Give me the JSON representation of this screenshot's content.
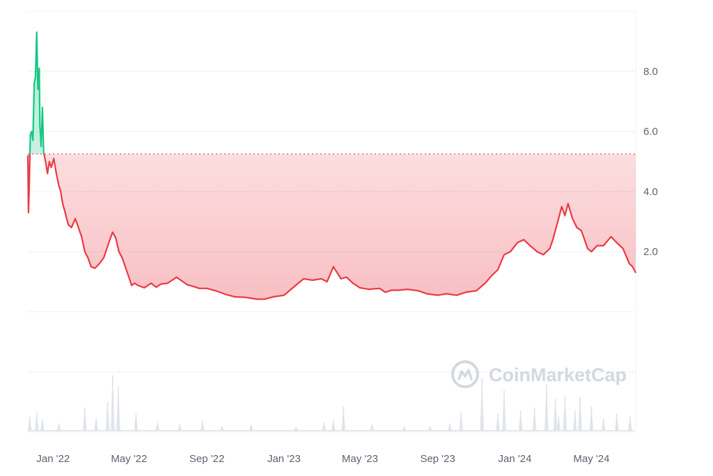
{
  "chart_data": {
    "type": "area",
    "baseline": 5.25,
    "ylim": [
      -4.0,
      10.0
    ],
    "y_ticks": [
      "8.0",
      "6.0",
      "4.0",
      "2.0"
    ],
    "y_tick_values": [
      8,
      6,
      4,
      2
    ],
    "x_ticks": [
      "Jan '22",
      "May '22",
      "Sep '22",
      "Jan '23",
      "May '23",
      "Sep '23",
      "Jan '24",
      "May '24"
    ],
    "x_tick_dates": [
      "2022-01-01",
      "2022-05-01",
      "2022-09-01",
      "2023-01-01",
      "2023-05-01",
      "2023-09-01",
      "2024-01-01",
      "2024-05-01"
    ],
    "x_range": [
      "2021-11-22",
      "2024-07-10"
    ],
    "series": [
      {
        "values_for": "price",
        "x": [
          "2021-11-22",
          "2021-11-23",
          "2021-11-24",
          "2021-11-26",
          "2021-11-28",
          "2021-11-30",
          "2021-12-02",
          "2021-12-04",
          "2021-12-06",
          "2021-12-07",
          "2021-12-08",
          "2021-12-10",
          "2021-12-11",
          "2021-12-13",
          "2021-12-15",
          "2021-12-17",
          "2021-12-20",
          "2021-12-23",
          "2021-12-26",
          "2021-12-29",
          "2022-01-02",
          "2022-01-06",
          "2022-01-10",
          "2022-01-13",
          "2022-01-16",
          "2022-01-20",
          "2022-01-25",
          "2022-01-30",
          "2022-02-05",
          "2022-02-10",
          "2022-02-15",
          "2022-02-20",
          "2022-02-25",
          "2022-03-02",
          "2022-03-08",
          "2022-03-15",
          "2022-03-22",
          "2022-03-30",
          "2022-04-05",
          "2022-04-10",
          "2022-04-15",
          "2022-04-20",
          "2022-04-25",
          "2022-04-30",
          "2022-05-05",
          "2022-05-10",
          "2022-05-15",
          "2022-05-25",
          "2022-06-05",
          "2022-06-13",
          "2022-06-20",
          "2022-07-01",
          "2022-07-15",
          "2022-08-01",
          "2022-08-10",
          "2022-08-20",
          "2022-09-01",
          "2022-09-15",
          "2022-10-01",
          "2022-10-15",
          "2022-11-01",
          "2022-11-10",
          "2022-11-20",
          "2022-12-01",
          "2022-12-15",
          "2023-01-01",
          "2023-01-15",
          "2023-02-01",
          "2023-02-15",
          "2023-03-01",
          "2023-03-10",
          "2023-03-20",
          "2023-04-01",
          "2023-04-10",
          "2023-04-20",
          "2023-05-01",
          "2023-05-15",
          "2023-06-01",
          "2023-06-10",
          "2023-06-20",
          "2023-07-01",
          "2023-07-15",
          "2023-08-01",
          "2023-08-15",
          "2023-09-01",
          "2023-09-15",
          "2023-10-01",
          "2023-10-15",
          "2023-11-01",
          "2023-11-15",
          "2023-11-25",
          "2023-12-05",
          "2023-12-15",
          "2023-12-25",
          "2024-01-05",
          "2024-01-15",
          "2024-01-25",
          "2024-02-05",
          "2024-02-15",
          "2024-02-25",
          "2024-03-01",
          "2024-03-10",
          "2024-03-15",
          "2024-03-20",
          "2024-03-25",
          "2024-04-01",
          "2024-04-08",
          "2024-04-15",
          "2024-04-25",
          "2024-05-01",
          "2024-05-10",
          "2024-05-20",
          "2024-06-01",
          "2024-06-10",
          "2024-06-20",
          "2024-06-30",
          "2024-07-05",
          "2024-07-10"
        ],
        "y": [
          5.2,
          3.3,
          4.0,
          5.9,
          6.0,
          5.7,
          7.6,
          7.8,
          9.3,
          8.3,
          7.4,
          8.1,
          6.2,
          5.5,
          6.8,
          5.3,
          5.0,
          4.6,
          5.0,
          4.8,
          5.1,
          4.6,
          4.2,
          4.0,
          3.6,
          3.3,
          2.9,
          2.8,
          3.1,
          2.8,
          2.5,
          2.0,
          1.8,
          1.5,
          1.45,
          1.6,
          1.8,
          2.3,
          2.65,
          2.45,
          2.0,
          1.8,
          1.5,
          1.2,
          0.88,
          0.95,
          0.88,
          0.8,
          0.95,
          0.82,
          0.92,
          0.95,
          1.15,
          0.9,
          0.85,
          0.78,
          0.78,
          0.7,
          0.58,
          0.5,
          0.48,
          0.45,
          0.42,
          0.42,
          0.5,
          0.55,
          0.8,
          1.1,
          1.05,
          1.1,
          1.0,
          1.5,
          1.1,
          1.15,
          0.95,
          0.8,
          0.75,
          0.78,
          0.65,
          0.72,
          0.72,
          0.75,
          0.7,
          0.6,
          0.55,
          0.6,
          0.55,
          0.65,
          0.7,
          0.95,
          1.2,
          1.4,
          1.9,
          2.0,
          2.3,
          2.4,
          2.2,
          2.0,
          1.9,
          2.1,
          2.4,
          3.1,
          3.5,
          3.2,
          3.6,
          3.1,
          2.8,
          2.7,
          2.1,
          2.0,
          2.2,
          2.2,
          2.5,
          2.3,
          2.1,
          1.6,
          1.5,
          1.3
        ]
      }
    ],
    "volume": {
      "x": [
        "2021-11-25",
        "2021-12-06",
        "2021-12-15",
        "2022-01-10",
        "2022-02-20",
        "2022-03-10",
        "2022-03-28",
        "2022-04-05",
        "2022-04-14",
        "2022-05-12",
        "2022-06-15",
        "2022-07-20",
        "2022-08-25",
        "2022-09-25",
        "2022-11-10",
        "2023-01-20",
        "2023-03-05",
        "2023-03-20",
        "2023-04-05",
        "2023-05-20",
        "2023-07-10",
        "2023-08-20",
        "2023-09-20",
        "2023-10-08",
        "2023-11-10",
        "2023-12-05",
        "2023-12-15",
        "2024-01-10",
        "2024-02-01",
        "2024-02-20",
        "2024-03-05",
        "2024-03-10",
        "2024-03-20",
        "2024-04-05",
        "2024-04-13",
        "2024-05-01",
        "2024-05-20",
        "2024-06-10",
        "2024-07-01"
      ],
      "y": [
        2.5,
        3.2,
        2.2,
        1.3,
        4.0,
        2.2,
        5.0,
        9.5,
        7.5,
        3.0,
        1.5,
        1.2,
        1.8,
        0.9,
        1.2,
        0.8,
        1.6,
        2.0,
        4.2,
        1.2,
        0.8,
        0.9,
        1.3,
        3.2,
        9.0,
        3.0,
        7.0,
        3.5,
        4.0,
        8.0,
        5.5,
        2.5,
        6.0,
        3.5,
        5.8,
        4.2,
        2.2,
        3.0,
        2.5
      ],
      "max": 10
    },
    "colors": {
      "up_line": "#16c784",
      "down_line": "#ea3943",
      "baseline": "#ea3943",
      "grid": "#eef0f3",
      "volume": "#e6e9ee"
    }
  },
  "watermark": {
    "text": "CoinMarketCap",
    "icon": "coinmarketcap-logo-icon"
  }
}
